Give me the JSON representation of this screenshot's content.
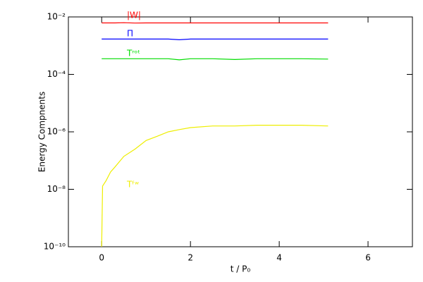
{
  "chart_data": {
    "type": "line",
    "xlabel": "t / P₀",
    "ylabel": "Energy Compnents",
    "log_y": true,
    "xlim": [
      -0.75,
      7
    ],
    "xticks": [
      0,
      2,
      4,
      6
    ],
    "ylim": [
      1e-10,
      0.01
    ],
    "yticks": [
      {
        "value": 1e-10,
        "label": "10⁻¹⁰"
      },
      {
        "value": 1e-08,
        "label": "10⁻⁸"
      },
      {
        "value": 1e-06,
        "label": "10⁻⁶"
      },
      {
        "value": 0.0001,
        "label": "10⁻⁴"
      },
      {
        "value": 0.01,
        "label": "10⁻²"
      }
    ],
    "x": [
      0,
      0.02,
      0.1,
      0.2,
      0.3,
      0.5,
      0.75,
      1.0,
      1.25,
      1.5,
      1.75,
      2.0,
      2.5,
      3.0,
      3.5,
      4.0,
      4.5,
      5.1
    ],
    "series": [
      {
        "name": "|W|",
        "color": "#ff0000",
        "values": [
          0.0062,
          0.0062,
          0.0062,
          0.0062,
          0.0062,
          0.0063,
          0.0061,
          0.0062,
          0.0062,
          0.0062,
          0.0062,
          0.0062,
          0.0062,
          0.0062,
          0.0062,
          0.0062,
          0.0062,
          0.0062
        ]
      },
      {
        "name": "Π",
        "color": "#0000ff",
        "values": [
          0.0017,
          0.0017,
          0.0017,
          0.0017,
          0.0017,
          0.0017,
          0.0017,
          0.0017,
          0.0017,
          0.0017,
          0.0016,
          0.0017,
          0.0017,
          0.0017,
          0.0017,
          0.0017,
          0.0017,
          0.0017
        ]
      },
      {
        "name": "Tʳᵒᵗ",
        "color": "#00dd00",
        "values": [
          0.00035,
          0.00035,
          0.00035,
          0.00035,
          0.00035,
          0.00035,
          0.00035,
          0.00035,
          0.00035,
          0.00035,
          0.00032,
          0.00035,
          0.00035,
          0.00033,
          0.00035,
          0.00035,
          0.00035,
          0.00034
        ]
      },
      {
        "name": "Tᶠʷ",
        "color": "#eeee00",
        "values": [
          1e-10,
          1.3e-08,
          2e-08,
          4e-08,
          6e-08,
          1.4e-07,
          2.5e-07,
          5e-07,
          7e-07,
          1e-06,
          1.2e-06,
          1.4e-06,
          1.6e-06,
          1.6e-06,
          1.7e-06,
          1.7e-06,
          1.7e-06,
          1.6e-06
        ]
      }
    ]
  }
}
